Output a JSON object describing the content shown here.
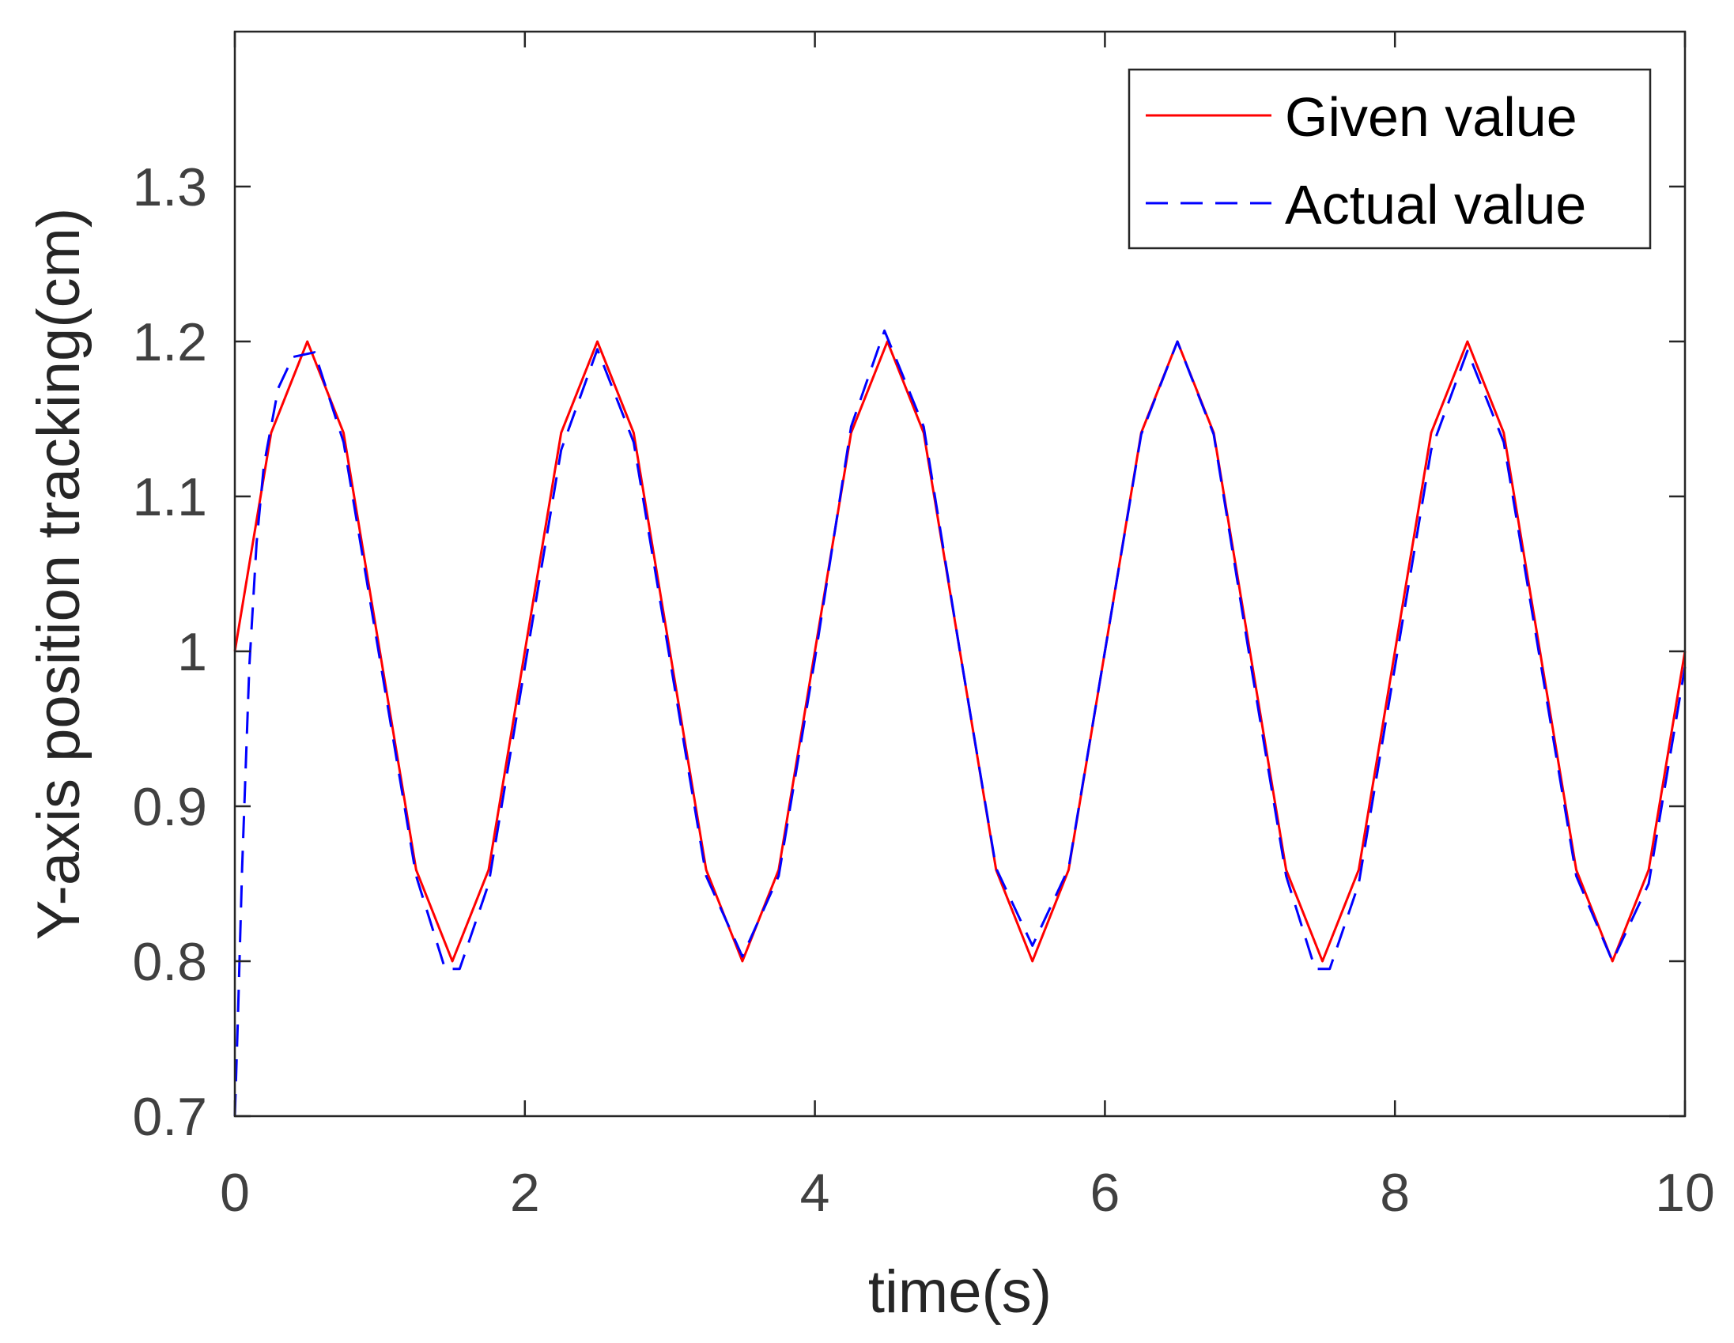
{
  "chart_data": {
    "type": "line",
    "title": "",
    "xlabel": "time(s)",
    "ylabel": "Y-axis position tracking(cm)",
    "xlim": [
      0,
      10
    ],
    "ylim": [
      0.7,
      1.4
    ],
    "grid": false,
    "legend_position": "top-right",
    "x_ticks": [
      0,
      2,
      4,
      6,
      8,
      10
    ],
    "x_tick_labels": [
      "0",
      "2",
      "4",
      "6",
      "8",
      "10"
    ],
    "y_ticks": [
      0.7,
      0.8,
      0.9,
      1.0,
      1.1,
      1.2,
      1.3
    ],
    "y_tick_labels": [
      "0.7",
      "0.8",
      "0.9",
      "1",
      "1.1",
      "1.2",
      "1.3"
    ],
    "series": [
      {
        "name": "Given value",
        "color": "#ff0000",
        "style": "solid",
        "x": [
          0,
          0.25,
          0.5,
          0.75,
          1.0,
          1.25,
          1.5,
          1.75,
          2.0,
          2.25,
          2.5,
          2.75,
          3.0,
          3.25,
          3.5,
          3.75,
          4.0,
          4.25,
          4.5,
          4.75,
          5.0,
          5.25,
          5.5,
          5.75,
          6.0,
          6.25,
          6.5,
          6.75,
          7.0,
          7.25,
          7.5,
          7.75,
          8.0,
          8.25,
          8.5,
          8.75,
          9.0,
          9.25,
          9.5,
          9.75,
          10.0
        ],
        "values": [
          1.0,
          1.141,
          1.2,
          1.141,
          1.0,
          0.859,
          0.8,
          0.859,
          1.0,
          1.141,
          1.2,
          1.141,
          1.0,
          0.859,
          0.8,
          0.859,
          1.0,
          1.141,
          1.2,
          1.141,
          1.0,
          0.859,
          0.8,
          0.859,
          1.0,
          1.141,
          1.2,
          1.141,
          1.0,
          0.859,
          0.8,
          0.859,
          1.0,
          1.141,
          1.2,
          1.141,
          1.0,
          0.859,
          0.8,
          0.859,
          1.0
        ]
      },
      {
        "name": "Actual value",
        "color": "#0000ff",
        "style": "dashed",
        "x": [
          0,
          0.02,
          0.05,
          0.1,
          0.15,
          0.2,
          0.3,
          0.4,
          0.55,
          0.75,
          1.0,
          1.25,
          1.45,
          1.55,
          1.75,
          2.0,
          2.25,
          2.5,
          2.75,
          3.0,
          3.25,
          3.5,
          3.75,
          4.0,
          4.25,
          4.48,
          4.75,
          5.0,
          5.25,
          5.5,
          5.75,
          6.0,
          6.25,
          6.5,
          6.75,
          7.0,
          7.25,
          7.45,
          7.55,
          7.75,
          8.0,
          8.25,
          8.5,
          8.75,
          9.0,
          9.25,
          9.5,
          9.75,
          10.0
        ],
        "values": [
          0.7,
          0.76,
          0.86,
          0.99,
          1.07,
          1.12,
          1.17,
          1.19,
          1.193,
          1.135,
          0.995,
          0.855,
          0.795,
          0.795,
          0.85,
          0.99,
          1.13,
          1.195,
          1.135,
          0.995,
          0.855,
          0.803,
          0.855,
          0.995,
          1.145,
          1.207,
          1.145,
          1.0,
          0.86,
          0.81,
          0.86,
          1.0,
          1.14,
          1.2,
          1.14,
          0.995,
          0.855,
          0.795,
          0.795,
          0.85,
          0.99,
          1.13,
          1.194,
          1.135,
          0.995,
          0.855,
          0.8,
          0.85,
          0.99
        ]
      }
    ]
  }
}
